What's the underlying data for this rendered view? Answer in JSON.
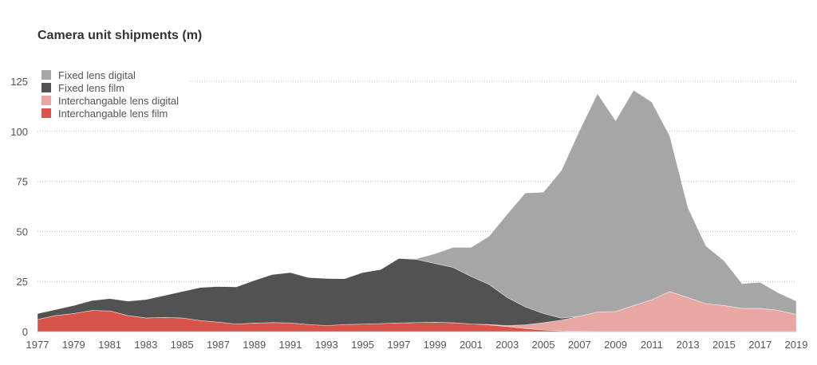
{
  "chart_data": {
    "type": "area",
    "stacked": true,
    "title": "Camera unit shipments (m)",
    "xlabel": "",
    "ylabel": "",
    "ylim": [
      0,
      125
    ],
    "yticks": [
      0,
      25,
      50,
      75,
      100,
      125
    ],
    "xticks": [
      1977,
      1979,
      1981,
      1983,
      1985,
      1987,
      1989,
      1991,
      1993,
      1995,
      1997,
      1999,
      2001,
      2003,
      2005,
      2007,
      2009,
      2011,
      2013,
      2015,
      2017,
      2019
    ],
    "grid": true,
    "legend_position": "top-left",
    "x": [
      1977,
      1978,
      1979,
      1980,
      1981,
      1982,
      1983,
      1984,
      1985,
      1986,
      1987,
      1988,
      1989,
      1990,
      1991,
      1992,
      1993,
      1994,
      1995,
      1996,
      1997,
      1998,
      1999,
      2000,
      2001,
      2002,
      2003,
      2004,
      2005,
      2006,
      2007,
      2008,
      2009,
      2010,
      2011,
      2012,
      2013,
      2014,
      2015,
      2016,
      2017,
      2018,
      2019
    ],
    "series": [
      {
        "name": "Interchangable lens film",
        "color": "#d9534a",
        "values": [
          6,
          8,
          9,
          10.5,
          10.3,
          8,
          6.8,
          7,
          6.8,
          5.5,
          4.7,
          3.8,
          4.2,
          4.5,
          4.3,
          3.5,
          3,
          3.5,
          3.7,
          4,
          4.3,
          4.5,
          4.6,
          4.4,
          3.8,
          3.3,
          2.5,
          1.5,
          0.8,
          0.3,
          0.1,
          0,
          0,
          0,
          0,
          0,
          0,
          0,
          0,
          0,
          0,
          0,
          0
        ]
      },
      {
        "name": "Interchangable lens digital",
        "color": "#e8a7a2",
        "values": [
          0,
          0,
          0,
          0,
          0,
          0,
          0,
          0,
          0,
          0,
          0,
          0,
          0,
          0,
          0,
          0,
          0,
          0,
          0,
          0,
          0,
          0,
          0,
          0,
          0,
          0.2,
          0.5,
          1.9,
          3.6,
          5.4,
          7.6,
          9.7,
          10,
          13,
          15.9,
          20,
          17,
          13.9,
          13,
          11.6,
          11.6,
          10.6,
          8.6
        ]
      },
      {
        "name": "Fixed lens film",
        "color": "#525252",
        "values": [
          3,
          3,
          4,
          5,
          6.2,
          7.2,
          9.2,
          11,
          13.2,
          16.5,
          17.8,
          18.5,
          21.3,
          24,
          25.2,
          23.5,
          23.5,
          22.9,
          25.8,
          27,
          32.2,
          31.5,
          29.4,
          27.6,
          23.7,
          20,
          14,
          8.9,
          4.6,
          1,
          0,
          0,
          0,
          0,
          0,
          0,
          0,
          0,
          0,
          0,
          0,
          0,
          0
        ]
      },
      {
        "name": "Fixed lens digital",
        "color": "#a6a6a6",
        "values": [
          0,
          0,
          0,
          0,
          0,
          0,
          0,
          0,
          0,
          0,
          0,
          0,
          0,
          0,
          0,
          0,
          0,
          0,
          0,
          0,
          0,
          0.4,
          4.8,
          10,
          14.5,
          24.1,
          41.6,
          56.9,
          60.6,
          73.7,
          92.6,
          109.1,
          95.3,
          107.5,
          98.7,
          77.6,
          44.9,
          28.8,
          22.4,
          12.3,
          13,
          8.7,
          6.6
        ]
      }
    ]
  }
}
